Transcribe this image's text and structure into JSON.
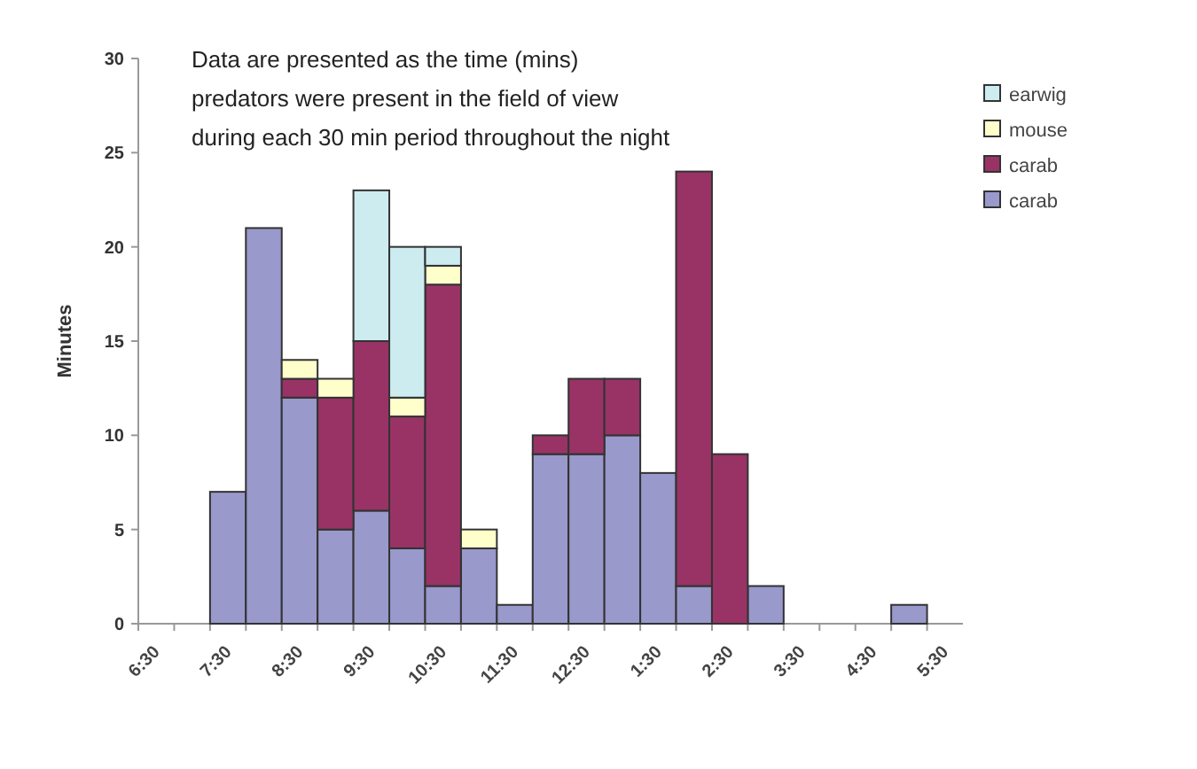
{
  "chart_data": {
    "type": "bar",
    "stacked": true,
    "ylabel": "Minutes",
    "annotations": [
      "Data are presented as the time (mins) predators were present in the field of view during each 30 min period throughout the night"
    ],
    "categories": [
      "6:30",
      null,
      "7:30",
      null,
      "8:30",
      null,
      "9:30",
      null,
      "10:30",
      null,
      "11:30",
      null,
      "12:30",
      null,
      "1:30",
      null,
      "2:30",
      null,
      "3:30",
      null,
      "4:30",
      null,
      "5:30"
    ],
    "series": [
      {
        "name": "carab",
        "color": "#9999cc",
        "values": [
          0,
          0,
          7,
          21,
          12,
          5,
          6,
          4,
          2,
          4,
          1,
          9,
          9,
          10,
          8,
          2,
          0,
          2,
          0,
          0,
          0,
          1,
          null
        ]
      },
      {
        "name": "carab",
        "color": "#993366",
        "values": [
          0,
          0,
          0,
          0,
          1,
          7,
          9,
          7,
          16,
          0,
          0,
          1,
          4,
          3,
          0,
          22,
          9,
          0,
          0,
          0,
          0,
          0,
          null
        ]
      },
      {
        "name": "mouse",
        "color": "#ffffcc",
        "values": [
          0,
          0,
          0,
          0,
          1,
          1,
          0,
          1,
          1,
          1,
          0,
          0,
          0,
          0,
          0,
          0,
          0,
          0,
          0,
          0,
          0,
          0,
          null
        ]
      },
      {
        "name": "earwig",
        "color": "#ccecf0",
        "values": [
          0,
          0,
          0,
          0,
          0,
          0,
          8,
          8,
          1,
          0,
          0,
          0,
          0,
          0,
          0,
          0,
          0,
          0,
          0,
          0,
          0,
          0,
          null
        ]
      }
    ],
    "ylim": [
      0,
      30
    ],
    "yticks": [
      0,
      5,
      10,
      15,
      20,
      25,
      30
    ],
    "grid": false,
    "legend": "top right"
  }
}
